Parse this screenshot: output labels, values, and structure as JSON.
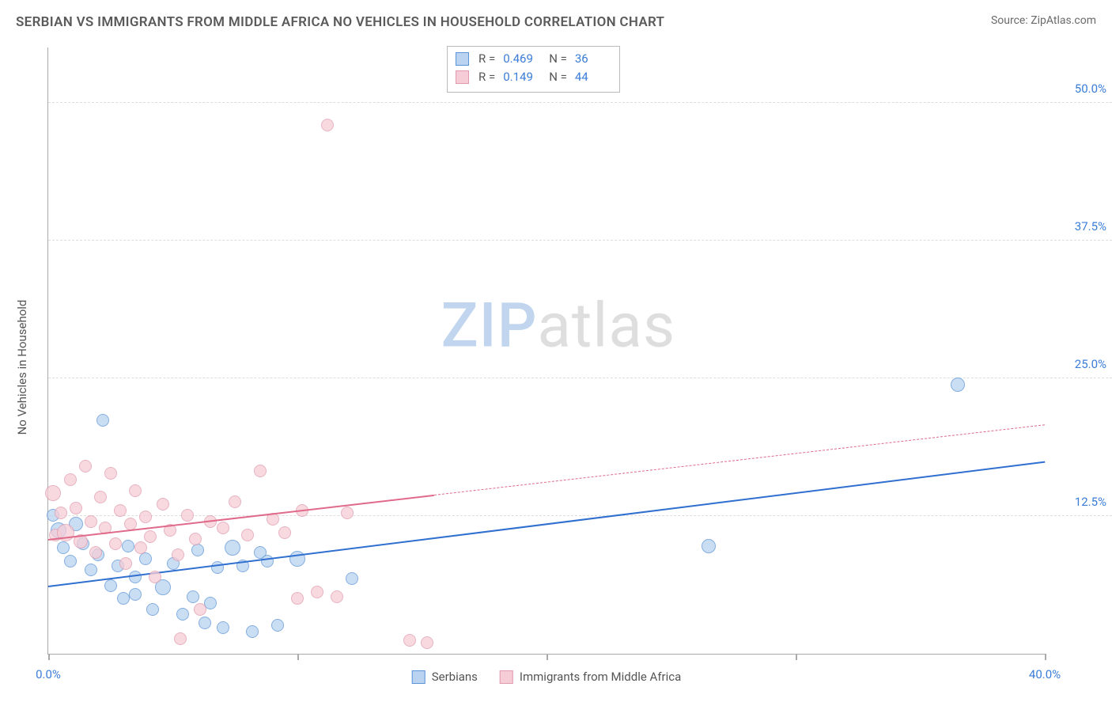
{
  "title": "SERBIAN VS IMMIGRANTS FROM MIDDLE AFRICA NO VEHICLES IN HOUSEHOLD CORRELATION CHART",
  "source_label": "Source:",
  "source_name": "ZipAtlas.com",
  "ylabel": "No Vehicles in Household",
  "watermark_prefix": "ZIP",
  "watermark_suffix": "atlas",
  "chart": {
    "type": "scatter",
    "background_color": "#ffffff",
    "grid_color": "#dddddd",
    "axis_color": "#aaaaaa",
    "tick_label_color": "#3b7dd8",
    "xlim": [
      0,
      40
    ],
    "ylim": [
      0,
      55
    ],
    "xticks": [
      0,
      10,
      20,
      30,
      40
    ],
    "xtick_labels": [
      "0.0%",
      "",
      "",
      "",
      "40.0%"
    ],
    "yticks": [
      12.5,
      25.0,
      37.5,
      50.0
    ],
    "ytick_labels": [
      "12.5%",
      "25.0%",
      "37.5%",
      "50.0%"
    ],
    "legend": [
      {
        "label": "Serbians",
        "fill": "#b9d3f0",
        "stroke": "#5a93d6"
      },
      {
        "label": "Immigrants from Middle Africa",
        "fill": "#f6cdd6",
        "stroke": "#e09aad"
      }
    ],
    "stats": [
      {
        "fill": "#b9d3f0",
        "stroke": "#5a93d6",
        "r": "0.469",
        "n": "36"
      },
      {
        "fill": "#f6cdd6",
        "stroke": "#e09aad",
        "r": "0.149",
        "n": "44"
      }
    ],
    "stats_labels": {
      "r": "R =",
      "n": "N ="
    },
    "point_radius_default": 8,
    "point_opacity": 0.75,
    "series": [
      {
        "name": "serbians",
        "fill": "#b9d3f0",
        "stroke": "#5a93d6",
        "trend_color": "#2f6fd0",
        "trend": {
          "x1": 0,
          "y1": 6.2,
          "x2": 40,
          "y2": 17.5,
          "solid_until_x": 40
        },
        "points": [
          {
            "x": 0.2,
            "y": 12.6,
            "r": 8
          },
          {
            "x": 0.4,
            "y": 11.2,
            "r": 10
          },
          {
            "x": 0.6,
            "y": 9.6,
            "r": 8
          },
          {
            "x": 0.9,
            "y": 8.4,
            "r": 8
          },
          {
            "x": 1.1,
            "y": 11.8,
            "r": 9
          },
          {
            "x": 1.4,
            "y": 10.0,
            "r": 8
          },
          {
            "x": 1.7,
            "y": 7.6,
            "r": 8
          },
          {
            "x": 2.0,
            "y": 9.0,
            "r": 8
          },
          {
            "x": 2.2,
            "y": 21.2,
            "r": 8
          },
          {
            "x": 2.5,
            "y": 6.2,
            "r": 8
          },
          {
            "x": 2.8,
            "y": 8.0,
            "r": 8
          },
          {
            "x": 3.0,
            "y": 5.0,
            "r": 8
          },
          {
            "x": 3.2,
            "y": 9.8,
            "r": 8
          },
          {
            "x": 3.5,
            "y": 7.0,
            "r": 8
          },
          {
            "x": 3.5,
            "y": 5.4,
            "r": 8
          },
          {
            "x": 3.9,
            "y": 8.6,
            "r": 8
          },
          {
            "x": 4.2,
            "y": 4.0,
            "r": 8
          },
          {
            "x": 4.6,
            "y": 6.0,
            "r": 10
          },
          {
            "x": 5.0,
            "y": 8.2,
            "r": 8
          },
          {
            "x": 5.4,
            "y": 3.6,
            "r": 8
          },
          {
            "x": 5.8,
            "y": 5.2,
            "r": 8
          },
          {
            "x": 6.0,
            "y": 9.4,
            "r": 8
          },
          {
            "x": 6.3,
            "y": 2.8,
            "r": 8
          },
          {
            "x": 6.8,
            "y": 7.8,
            "r": 8
          },
          {
            "x": 7.0,
            "y": 2.4,
            "r": 8
          },
          {
            "x": 7.4,
            "y": 9.6,
            "r": 10
          },
          {
            "x": 7.8,
            "y": 8.0,
            "r": 8
          },
          {
            "x": 8.2,
            "y": 2.0,
            "r": 8
          },
          {
            "x": 8.5,
            "y": 9.2,
            "r": 8
          },
          {
            "x": 8.8,
            "y": 8.4,
            "r": 8
          },
          {
            "x": 9.2,
            "y": 2.6,
            "r": 8
          },
          {
            "x": 10.0,
            "y": 8.6,
            "r": 10
          },
          {
            "x": 12.2,
            "y": 6.8,
            "r": 8
          },
          {
            "x": 26.5,
            "y": 9.8,
            "r": 9
          },
          {
            "x": 36.5,
            "y": 24.4,
            "r": 9
          },
          {
            "x": 6.5,
            "y": 4.6,
            "r": 8
          }
        ]
      },
      {
        "name": "middle-africa",
        "fill": "#f6cdd6",
        "stroke": "#e09aad",
        "trend_color": "#e06a8a",
        "trend": {
          "x1": 0,
          "y1": 10.4,
          "x2": 40,
          "y2": 20.8,
          "solid_until_x": 15.5
        },
        "points": [
          {
            "x": 0.2,
            "y": 14.6,
            "r": 10
          },
          {
            "x": 0.3,
            "y": 10.8,
            "r": 8
          },
          {
            "x": 0.5,
            "y": 12.8,
            "r": 8
          },
          {
            "x": 0.7,
            "y": 11.0,
            "r": 11
          },
          {
            "x": 0.9,
            "y": 15.8,
            "r": 8
          },
          {
            "x": 1.1,
            "y": 13.2,
            "r": 8
          },
          {
            "x": 1.3,
            "y": 10.2,
            "r": 9
          },
          {
            "x": 1.5,
            "y": 17.0,
            "r": 8
          },
          {
            "x": 1.7,
            "y": 12.0,
            "r": 8
          },
          {
            "x": 1.9,
            "y": 9.2,
            "r": 8
          },
          {
            "x": 2.1,
            "y": 14.2,
            "r": 8
          },
          {
            "x": 2.3,
            "y": 11.4,
            "r": 8
          },
          {
            "x": 2.5,
            "y": 16.4,
            "r": 8
          },
          {
            "x": 2.7,
            "y": 10.0,
            "r": 8
          },
          {
            "x": 2.9,
            "y": 13.0,
            "r": 8
          },
          {
            "x": 3.1,
            "y": 8.2,
            "r": 8
          },
          {
            "x": 3.3,
            "y": 11.8,
            "r": 8
          },
          {
            "x": 3.5,
            "y": 14.8,
            "r": 8
          },
          {
            "x": 3.7,
            "y": 9.6,
            "r": 8
          },
          {
            "x": 3.9,
            "y": 12.4,
            "r": 8
          },
          {
            "x": 4.1,
            "y": 10.6,
            "r": 8
          },
          {
            "x": 4.3,
            "y": 7.0,
            "r": 8
          },
          {
            "x": 4.6,
            "y": 13.6,
            "r": 8
          },
          {
            "x": 4.9,
            "y": 11.2,
            "r": 8
          },
          {
            "x": 5.2,
            "y": 9.0,
            "r": 8
          },
          {
            "x": 5.3,
            "y": 1.4,
            "r": 8
          },
          {
            "x": 5.6,
            "y": 12.6,
            "r": 8
          },
          {
            "x": 5.9,
            "y": 10.4,
            "r": 8
          },
          {
            "x": 6.1,
            "y": 4.0,
            "r": 8
          },
          {
            "x": 6.5,
            "y": 12.0,
            "r": 8
          },
          {
            "x": 7.0,
            "y": 11.4,
            "r": 8
          },
          {
            "x": 7.5,
            "y": 13.8,
            "r": 8
          },
          {
            "x": 8.0,
            "y": 10.8,
            "r": 8
          },
          {
            "x": 8.5,
            "y": 16.6,
            "r": 8
          },
          {
            "x": 9.0,
            "y": 12.2,
            "r": 8
          },
          {
            "x": 9.5,
            "y": 11.0,
            "r": 8
          },
          {
            "x": 10.0,
            "y": 5.0,
            "r": 8
          },
          {
            "x": 10.2,
            "y": 13.0,
            "r": 8
          },
          {
            "x": 10.8,
            "y": 5.6,
            "r": 8
          },
          {
            "x": 11.2,
            "y": 48.0,
            "r": 8
          },
          {
            "x": 11.6,
            "y": 5.2,
            "r": 8
          },
          {
            "x": 12.0,
            "y": 12.8,
            "r": 8
          },
          {
            "x": 14.5,
            "y": 1.2,
            "r": 8
          },
          {
            "x": 15.2,
            "y": 1.0,
            "r": 8
          }
        ]
      }
    ]
  }
}
